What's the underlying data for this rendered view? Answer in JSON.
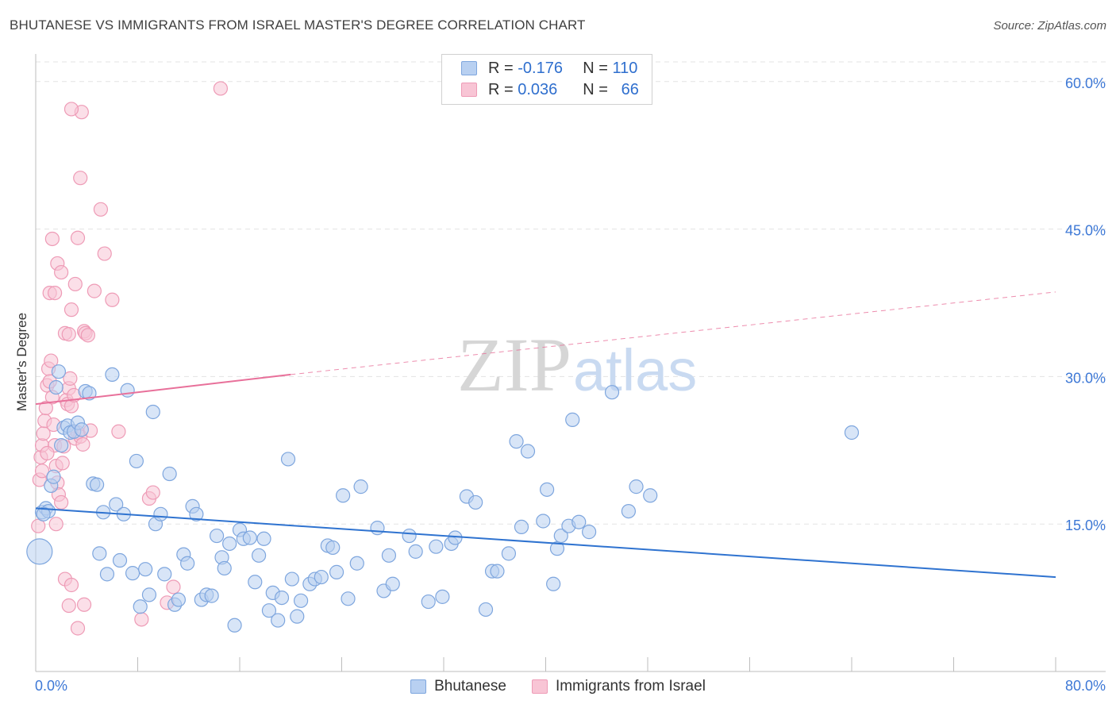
{
  "header": {
    "title": "BHUTANESE VS IMMIGRANTS FROM ISRAEL MASTER'S DEGREE CORRELATION CHART",
    "source": "Source: ZipAtlas.com"
  },
  "legend_top": {
    "row1": {
      "r_label": "R =",
      "r_value": "-0.176",
      "n_label": "N =",
      "n_value": "110"
    },
    "row2": {
      "r_label": "R =",
      "r_value": "0.036",
      "n_label": "N =",
      "n_value": "66"
    }
  },
  "watermark": {
    "zip": "ZIP",
    "atlas": "atlas"
  },
  "colors": {
    "blue_fill": "#b8d0f1",
    "blue_stroke": "#7ea6de",
    "blue_line": "#2f73d0",
    "pink_fill": "#f8c5d5",
    "pink_stroke": "#ee9bb6",
    "pink_line": "#e8709a",
    "axis_text": "#3d78d6",
    "grid": "#e3e3e3"
  },
  "chart_data": {
    "type": "scatter",
    "title": "BHUTANESE VS IMMIGRANTS FROM ISRAEL MASTER'S DEGREE CORRELATION CHART",
    "ylabel": "Master's Degree",
    "xlabel": "",
    "xlim": [
      0,
      80
    ],
    "ylim": [
      0,
      62
    ],
    "x_tick_labels": [
      "0.0%",
      "80.0%"
    ],
    "y_ticks": [
      15,
      30,
      45,
      60
    ],
    "y_tick_labels": [
      "15.0%",
      "30.0%",
      "45.0%",
      "60.0%"
    ],
    "grid": "horizontal dashed",
    "legend": [
      "Bhutanese",
      "Immigrants from Israel"
    ],
    "series": [
      {
        "name": "Bhutanese",
        "r": -0.176,
        "n": 110,
        "trend": {
          "x": [
            0,
            80
          ],
          "y": [
            16.6,
            9.6
          ],
          "style": "solid"
        },
        "points": [
          [
            0.3,
            12.2
          ],
          [
            0.5,
            16.2
          ],
          [
            0.8,
            16.6
          ],
          [
            1.0,
            16.3
          ],
          [
            1.2,
            18.9
          ],
          [
            1.4,
            19.8
          ],
          [
            1.6,
            28.9
          ],
          [
            1.8,
            30.5
          ],
          [
            2.0,
            23.0
          ],
          [
            2.2,
            24.8
          ],
          [
            2.5,
            25.0
          ],
          [
            2.7,
            24.3
          ],
          [
            3.0,
            24.4
          ],
          [
            3.3,
            25.3
          ],
          [
            3.6,
            24.6
          ],
          [
            3.9,
            28.5
          ],
          [
            4.2,
            28.3
          ],
          [
            4.5,
            19.1
          ],
          [
            4.8,
            19.0
          ],
          [
            5.0,
            12.0
          ],
          [
            5.3,
            16.2
          ],
          [
            5.6,
            9.9
          ],
          [
            6.0,
            30.2
          ],
          [
            6.3,
            17.0
          ],
          [
            6.6,
            11.3
          ],
          [
            6.9,
            16.0
          ],
          [
            7.2,
            28.6
          ],
          [
            7.6,
            10.0
          ],
          [
            7.9,
            21.4
          ],
          [
            8.2,
            6.6
          ],
          [
            8.6,
            10.4
          ],
          [
            8.9,
            7.8
          ],
          [
            9.2,
            26.4
          ],
          [
            9.4,
            15.0
          ],
          [
            9.8,
            16.0
          ],
          [
            10.1,
            9.9
          ],
          [
            10.5,
            20.1
          ],
          [
            10.9,
            6.8
          ],
          [
            11.2,
            7.3
          ],
          [
            11.6,
            11.9
          ],
          [
            11.9,
            11.0
          ],
          [
            12.3,
            16.8
          ],
          [
            12.6,
            16.0
          ],
          [
            13.0,
            7.3
          ],
          [
            13.4,
            7.8
          ],
          [
            13.8,
            7.7
          ],
          [
            14.2,
            13.8
          ],
          [
            14.6,
            11.6
          ],
          [
            14.8,
            10.5
          ],
          [
            15.2,
            13.0
          ],
          [
            15.6,
            4.7
          ],
          [
            16.0,
            14.4
          ],
          [
            16.3,
            13.5
          ],
          [
            16.8,
            13.6
          ],
          [
            17.2,
            9.1
          ],
          [
            17.5,
            11.8
          ],
          [
            17.9,
            13.5
          ],
          [
            18.3,
            6.2
          ],
          [
            18.6,
            8.0
          ],
          [
            19.0,
            5.2
          ],
          [
            19.3,
            7.5
          ],
          [
            19.8,
            21.6
          ],
          [
            20.1,
            9.4
          ],
          [
            20.5,
            5.6
          ],
          [
            20.8,
            7.2
          ],
          [
            21.5,
            8.9
          ],
          [
            21.9,
            9.4
          ],
          [
            22.4,
            9.6
          ],
          [
            22.9,
            12.8
          ],
          [
            23.3,
            12.6
          ],
          [
            23.6,
            10.1
          ],
          [
            24.1,
            17.9
          ],
          [
            24.5,
            7.4
          ],
          [
            25.2,
            11.0
          ],
          [
            25.5,
            18.8
          ],
          [
            26.8,
            14.6
          ],
          [
            27.3,
            8.2
          ],
          [
            27.7,
            11.8
          ],
          [
            28.0,
            8.9
          ],
          [
            29.3,
            13.8
          ],
          [
            29.8,
            12.2
          ],
          [
            30.8,
            7.1
          ],
          [
            31.4,
            12.7
          ],
          [
            31.9,
            7.6
          ],
          [
            32.6,
            13.0
          ],
          [
            32.9,
            13.6
          ],
          [
            33.8,
            17.8
          ],
          [
            34.5,
            17.2
          ],
          [
            35.3,
            6.3
          ],
          [
            35.8,
            10.2
          ],
          [
            36.2,
            10.2
          ],
          [
            37.1,
            12.0
          ],
          [
            37.7,
            23.4
          ],
          [
            38.1,
            14.7
          ],
          [
            38.6,
            22.4
          ],
          [
            39.8,
            15.3
          ],
          [
            40.1,
            18.5
          ],
          [
            40.6,
            8.9
          ],
          [
            40.9,
            12.5
          ],
          [
            41.2,
            13.8
          ],
          [
            41.8,
            14.8
          ],
          [
            42.1,
            25.6
          ],
          [
            42.6,
            15.2
          ],
          [
            43.4,
            14.2
          ],
          [
            45.2,
            28.4
          ],
          [
            46.5,
            16.3
          ],
          [
            47.1,
            18.8
          ],
          [
            48.2,
            17.9
          ],
          [
            64.0,
            24.3
          ],
          [
            0.6,
            16.0
          ]
        ]
      },
      {
        "name": "Immigrants from Israel",
        "r": 0.036,
        "n": 66,
        "trend": {
          "x_solid": [
            0,
            20
          ],
          "y_solid": [
            27.2,
            30.2
          ],
          "x_dashed": [
            20,
            80
          ],
          "y_dashed": [
            30.2,
            38.6
          ]
        },
        "points": [
          [
            0.2,
            14.8
          ],
          [
            0.3,
            19.5
          ],
          [
            0.4,
            21.8
          ],
          [
            0.5,
            23.0
          ],
          [
            0.6,
            24.2
          ],
          [
            0.7,
            25.5
          ],
          [
            0.8,
            26.8
          ],
          [
            0.9,
            29.1
          ],
          [
            1.0,
            30.8
          ],
          [
            1.1,
            29.5
          ],
          [
            1.2,
            31.6
          ],
          [
            1.3,
            27.9
          ],
          [
            1.4,
            25.1
          ],
          [
            1.5,
            23.0
          ],
          [
            1.6,
            20.9
          ],
          [
            1.7,
            19.2
          ],
          [
            1.8,
            18.0
          ],
          [
            2.0,
            17.2
          ],
          [
            2.1,
            21.2
          ],
          [
            2.2,
            22.9
          ],
          [
            2.4,
            27.6
          ],
          [
            2.5,
            27.2
          ],
          [
            2.6,
            28.8
          ],
          [
            2.7,
            29.8
          ],
          [
            2.8,
            27.0
          ],
          [
            3.0,
            28.1
          ],
          [
            3.1,
            23.7
          ],
          [
            3.3,
            24.3
          ],
          [
            3.5,
            23.9
          ],
          [
            3.7,
            23.1
          ],
          [
            3.8,
            34.6
          ],
          [
            3.9,
            34.4
          ],
          [
            4.1,
            34.2
          ],
          [
            4.3,
            24.5
          ],
          [
            1.1,
            38.5
          ],
          [
            1.3,
            44.0
          ],
          [
            1.5,
            38.5
          ],
          [
            1.7,
            41.5
          ],
          [
            2.0,
            40.6
          ],
          [
            2.3,
            34.4
          ],
          [
            2.6,
            34.3
          ],
          [
            2.8,
            36.8
          ],
          [
            3.1,
            39.4
          ],
          [
            3.3,
            44.1
          ],
          [
            3.5,
            50.2
          ],
          [
            3.6,
            56.9
          ],
          [
            4.6,
            38.7
          ],
          [
            5.1,
            47.0
          ],
          [
            5.4,
            42.5
          ],
          [
            6.0,
            37.8
          ],
          [
            2.8,
            57.2
          ],
          [
            14.5,
            59.3
          ],
          [
            2.3,
            9.4
          ],
          [
            2.6,
            6.7
          ],
          [
            2.8,
            8.8
          ],
          [
            3.3,
            4.4
          ],
          [
            3.8,
            6.8
          ],
          [
            6.5,
            24.4
          ],
          [
            8.3,
            5.3
          ],
          [
            8.9,
            17.6
          ],
          [
            9.2,
            18.2
          ],
          [
            10.3,
            7.0
          ],
          [
            10.8,
            8.6
          ],
          [
            1.6,
            15.0
          ],
          [
            0.9,
            22.2
          ],
          [
            0.5,
            20.4
          ]
        ]
      }
    ]
  },
  "legend_bottom": {
    "series1": "Bhutanese",
    "series2": "Immigrants from Israel"
  }
}
